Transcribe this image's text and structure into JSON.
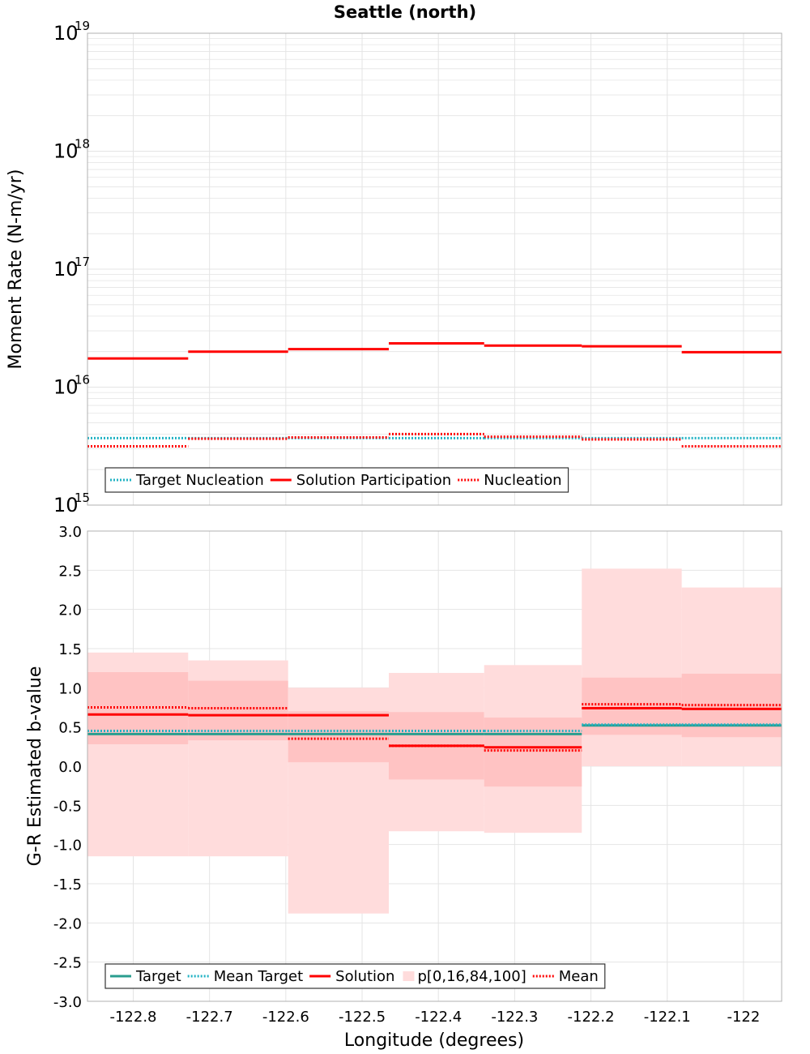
{
  "title": "Seattle (north)",
  "colors": {
    "target": "#1aa59a",
    "target_mean": "#22b3c4",
    "solution": "#ff0000",
    "band_outer": "#ffdcdc",
    "band_inner": "#ffc3c3",
    "grid": "#e4e4e4",
    "frame": "#b0b0b0",
    "target_b": "#2a9d8f"
  },
  "chart_data": [
    {
      "type": "line",
      "name": "moment-rate",
      "title": "Seattle (north)",
      "xlabel": "",
      "ylabel": "Moment Rate (N-m/yr)",
      "yscale": "log",
      "xlim": [
        -122.86,
        -121.95
      ],
      "ylim": [
        1000000000000000.0,
        1e+19
      ],
      "grid": true,
      "legend_position": "bottom-left",
      "yticks": [
        {
          "base": "10",
          "exp": "15",
          "value": 1000000000000000.0
        },
        {
          "base": "10",
          "exp": "16",
          "value": 1e+16
        },
        {
          "base": "10",
          "exp": "17",
          "value": 1e+17
        },
        {
          "base": "10",
          "exp": "18",
          "value": 1e+18
        },
        {
          "base": "10",
          "exp": "19",
          "value": 1e+19
        }
      ],
      "bin_edges": [
        -122.86,
        -122.728,
        -122.597,
        -122.465,
        -122.34,
        -122.212,
        -122.081,
        -121.95
      ],
      "series": [
        {
          "name": "Target Nucleation",
          "style": "dotted",
          "color": "#22b3c4",
          "values": [
            3700000000000000.0,
            3700000000000000.0,
            3700000000000000.0,
            3700000000000000.0,
            3700000000000000.0,
            3700000000000000.0,
            3700000000000000.0
          ]
        },
        {
          "name": "Solution Participation",
          "style": "solid",
          "color": "#ff0000",
          "values": [
            1.75e+16,
            2e+16,
            2.1e+16,
            2.35e+16,
            2.25e+16,
            2.22e+16,
            1.98e+16
          ]
        },
        {
          "name": "Nucleation",
          "style": "dotted",
          "color": "#ff0000",
          "values": [
            3150000000000000.0,
            3650000000000000.0,
            3750000000000000.0,
            4000000000000000.0,
            3800000000000000.0,
            3600000000000000.0,
            3150000000000000.0
          ]
        }
      ],
      "legend": [
        "Target Nucleation",
        "Solution Participation",
        "Nucleation"
      ]
    },
    {
      "type": "line",
      "name": "b-value",
      "xlabel": "Longitude (degrees)",
      "ylabel": "G-R Estimated b-value",
      "xlim": [
        -122.86,
        -121.95
      ],
      "ylim": [
        -3.0,
        3.0
      ],
      "grid": true,
      "legend_position": "bottom-left",
      "xticks": [
        {
          "label": "-122.8",
          "value": -122.8
        },
        {
          "label": "-122.7",
          "value": -122.7
        },
        {
          "label": "-122.6",
          "value": -122.6
        },
        {
          "label": "-122.5",
          "value": -122.5
        },
        {
          "label": "-122.4",
          "value": -122.4
        },
        {
          "label": "-122.3",
          "value": -122.3
        },
        {
          "label": "-122.2",
          "value": -122.2
        },
        {
          "label": "-122.1",
          "value": -122.1
        },
        {
          "label": "-122",
          "value": -122.0
        }
      ],
      "yticks": [
        "3.0",
        "2.5",
        "2.0",
        "1.5",
        "1.0",
        "0.5",
        "0.0",
        "-0.5",
        "-1.0",
        "-1.5",
        "-2.0",
        "-2.5",
        "-3.0"
      ],
      "bin_edges": [
        -122.86,
        -122.728,
        -122.597,
        -122.465,
        -122.34,
        -122.212,
        -122.081,
        -121.95
      ],
      "bands": {
        "name": "p[0,16,84,100]",
        "p0": [
          -1.15,
          -1.15,
          -1.88,
          -0.83,
          -0.85,
          0.0,
          0.0
        ],
        "p16": [
          0.28,
          0.33,
          0.05,
          -0.17,
          -0.26,
          0.4,
          0.37
        ],
        "p84": [
          1.2,
          1.09,
          0.7,
          0.69,
          0.62,
          1.13,
          1.18
        ],
        "p100": [
          1.45,
          1.35,
          1.0,
          1.19,
          1.29,
          2.52,
          2.28
        ]
      },
      "series": [
        {
          "name": "Target",
          "style": "solid",
          "color": "#2a9d8f",
          "values": [
            0.41,
            0.41,
            0.41,
            0.41,
            0.41,
            0.52,
            0.52
          ]
        },
        {
          "name": "Mean Target",
          "style": "dotted",
          "color": "#22b3c4",
          "values": [
            0.45,
            0.45,
            0.45,
            0.45,
            0.45,
            0.53,
            0.53
          ]
        },
        {
          "name": "Solution",
          "style": "solid",
          "color": "#ff0000",
          "values": [
            0.66,
            0.65,
            0.65,
            0.26,
            0.24,
            0.74,
            0.73
          ]
        },
        {
          "name": "Mean",
          "style": "dotted",
          "color": "#ff0000",
          "values": [
            0.75,
            0.74,
            0.35,
            0.26,
            0.2,
            0.79,
            0.78
          ]
        }
      ],
      "legend": [
        "Target",
        "Mean Target",
        "Solution",
        "p[0,16,84,100]",
        "Mean"
      ]
    }
  ]
}
